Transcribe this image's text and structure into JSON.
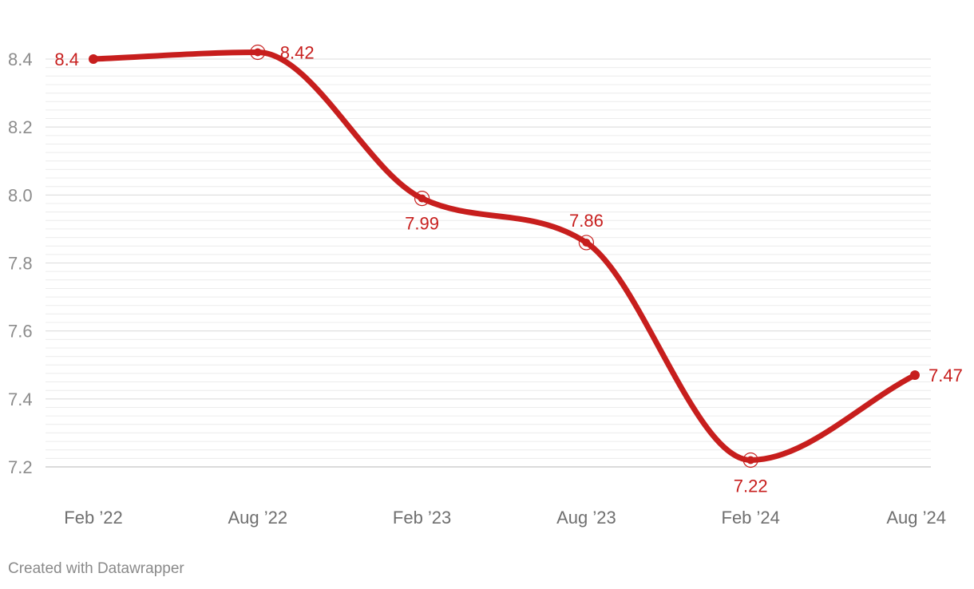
{
  "chart_data": {
    "type": "line",
    "x": [
      "Feb ’22",
      "Aug ’22",
      "Feb ’23",
      "Aug ’23",
      "Feb ’24",
      "Aug ’24"
    ],
    "series": [
      {
        "values": [
          8.4,
          8.42,
          7.99,
          7.86,
          7.22,
          7.47
        ]
      }
    ],
    "data_labels": [
      "8.4",
      "8.42",
      "7.99",
      "7.86",
      "7.22",
      "7.47"
    ],
    "yticks": [
      "7.2",
      "7.4",
      "7.6",
      "7.8",
      "8.0",
      "8.2",
      "8.4"
    ],
    "ylim": [
      7.2,
      8.4
    ],
    "grid": true,
    "line_color": "#c71e1d",
    "title": "",
    "xlabel": "",
    "ylabel": ""
  },
  "footer": {
    "credit": "Created with Datawrapper"
  }
}
